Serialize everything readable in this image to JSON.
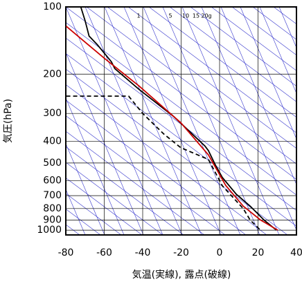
{
  "chart_data": {
    "type": "line",
    "xlabel": "気温(実線), 露点(破線)",
    "ylabel": "気圧(hPa)",
    "annotations": [
      "1",
      "5",
      "10",
      "15",
      "20g"
    ],
    "xlim": [
      -80,
      40
    ],
    "xticks": [
      -80,
      -60,
      -40,
      -20,
      0,
      20,
      40
    ],
    "ylim": [
      1050,
      100
    ],
    "yticks": [
      100,
      200,
      300,
      400,
      500,
      600,
      700,
      800,
      900,
      1000
    ],
    "log_y": true,
    "grid": true,
    "series": [
      {
        "color": "#000000",
        "dash": false,
        "x": [
          29.6,
          23.1,
          15.9,
          8.7,
          1.4,
          -2.2,
          -5.8,
          -7.6,
          -23.8,
          -41.9,
          -54.5,
          -56.3,
          -63.5,
          -67.9,
          -69,
          -70,
          -72.2
        ],
        "values": [
          1000,
          900,
          780,
          690,
          580,
          510,
          440,
          420,
          310,
          234,
          189,
          176,
          148,
          135,
          124,
          115,
          100
        ]
      },
      {
        "color": "#cc0000",
        "dash": false,
        "x": [
          30.3,
          21.3,
          12.3,
          3.2,
          -5.8,
          -20.2,
          -41.9,
          -59.9,
          -79.8
        ],
        "values": [
          1000,
          900,
          780,
          630,
          460,
          330,
          226,
          170,
          122
        ]
      },
      {
        "color": "#000000",
        "dash": true,
        "x": [
          -79.8,
          -47.3,
          -40,
          -29,
          -20.2,
          -5.8,
          1.4,
          12.3,
          15.9,
          21.3
        ],
        "values": [
          251,
          251,
          300,
          371,
          427,
          482,
          632,
          800,
          900,
          1000
        ]
      }
    ]
  }
}
